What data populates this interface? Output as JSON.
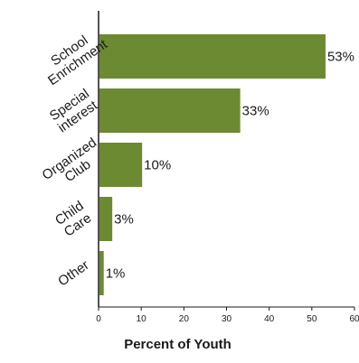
{
  "chart_data": {
    "type": "bar",
    "orientation": "horizontal",
    "categories": [
      [
        "School",
        "Enrichment"
      ],
      [
        "Special",
        "interest"
      ],
      [
        "Organized",
        "Club"
      ],
      [
        "Child",
        "Care"
      ],
      [
        "Other"
      ]
    ],
    "values": [
      53,
      33,
      10,
      3,
      1
    ],
    "value_labels": [
      "53%",
      "33%",
      "10%",
      "3%",
      "1%"
    ],
    "xlabel": "Percent of Youth",
    "xlim": [
      0,
      60
    ],
    "xticks": [
      0,
      10,
      20,
      30,
      40,
      50,
      60
    ],
    "grid": false,
    "legend": "none",
    "bar_color": "#6b8a32"
  }
}
